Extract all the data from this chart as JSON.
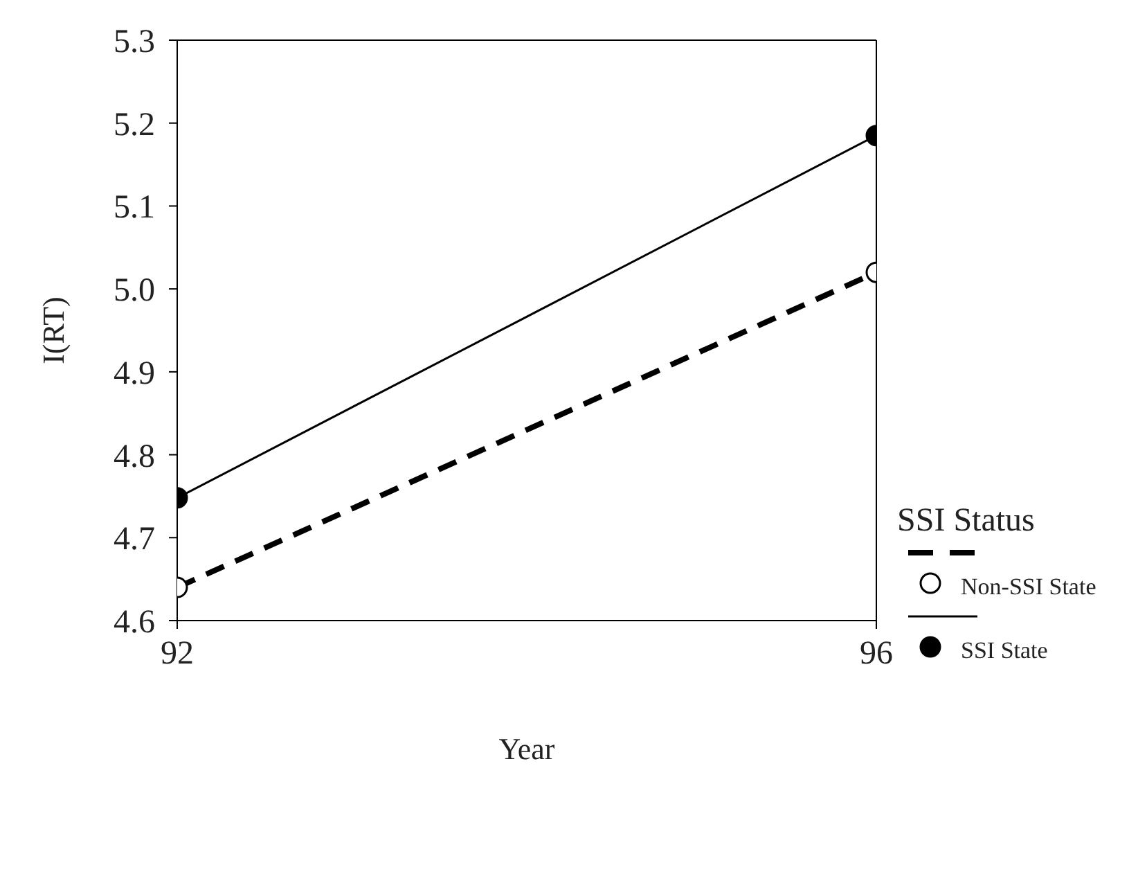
{
  "chart_data": {
    "type": "line",
    "xlabel": "Year",
    "ylabel": "I(RT)",
    "legend_title": "SSI Status",
    "x": [
      92,
      96
    ],
    "series": [
      {
        "name": "Non-SSI State",
        "color": "#000000",
        "values": [
          4.64,
          5.02
        ],
        "line_style": "dashed"
      },
      {
        "name": "SSI State",
        "color": "#000000",
        "values": [
          4.748,
          5.185
        ],
        "line_style": "solid"
      }
    ],
    "xlim": [
      92,
      96
    ],
    "xticks": [
      92,
      96
    ],
    "ylim": [
      4.6,
      5.3
    ],
    "yticks": [
      {
        "value": 4.6,
        "label": "4.6"
      },
      {
        "value": 4.7,
        "label": "4.7"
      },
      {
        "value": 4.8,
        "label": "4.8"
      },
      {
        "value": 4.9,
        "label": "4.9"
      },
      {
        "value": 5.0,
        "label": "5.0"
      },
      {
        "value": 5.1,
        "label": "5.1"
      },
      {
        "value": 5.2,
        "label": "5.2"
      },
      {
        "value": 5.3,
        "label": "5.3"
      }
    ],
    "grid": false,
    "legend": "bottom right",
    "marker": "circle"
  }
}
